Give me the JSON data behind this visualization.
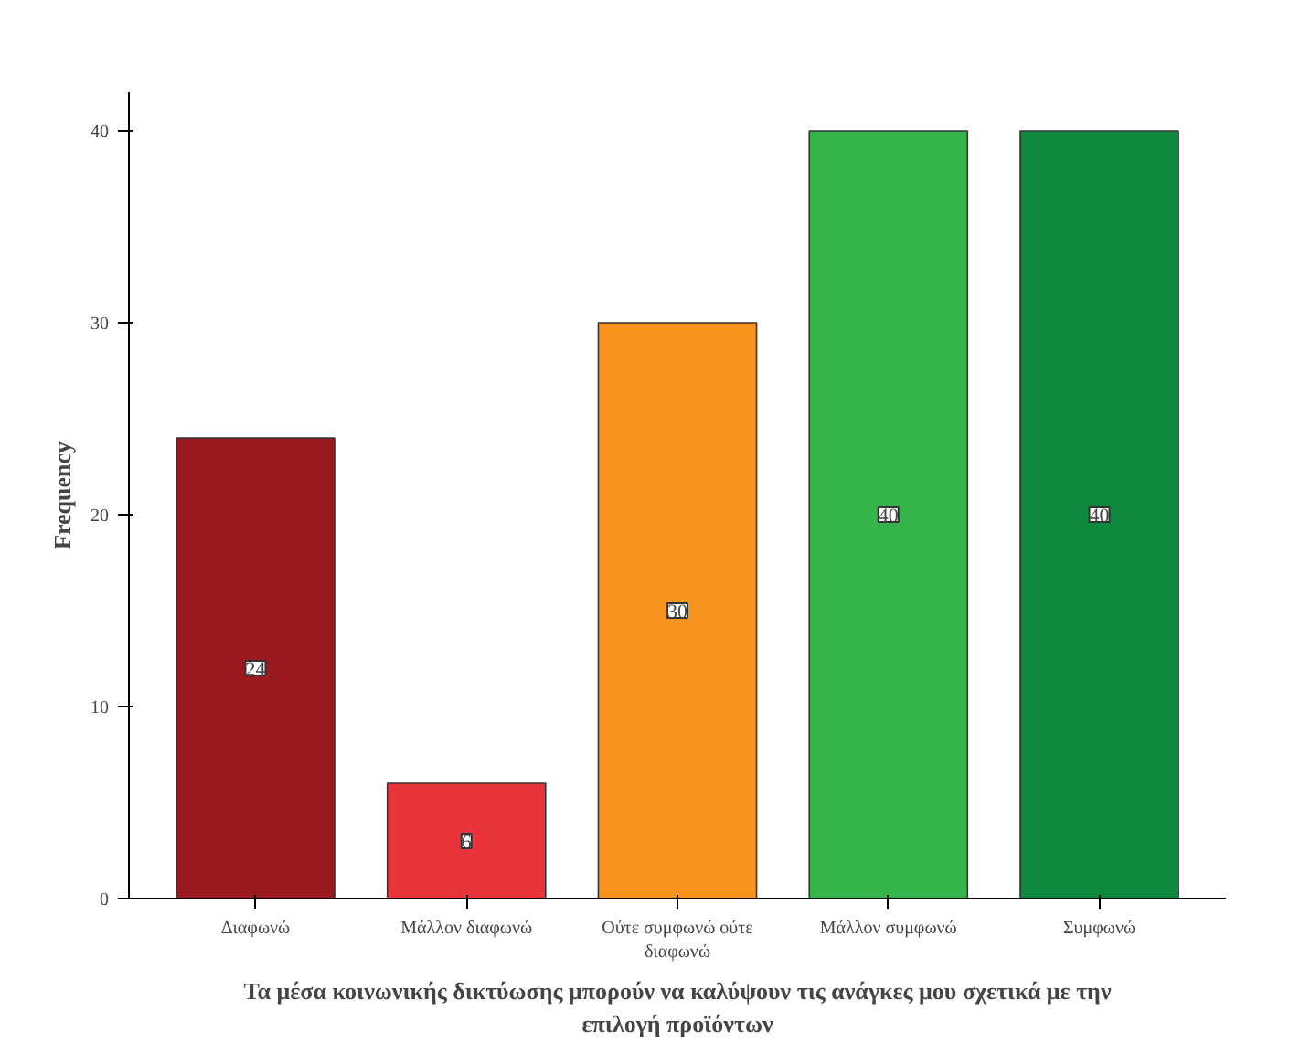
{
  "chart_data": {
    "type": "bar",
    "xlabel": "Τα μέσα κοινωνικής δικτύωσης μπορούν να καλύψουν τις ανάγκες μου σχετικά με την επιλογή προϊόντων",
    "ylabel": "Frequency",
    "categories": [
      "Διαφωνώ",
      "Μάλλον διαφωνώ",
      "Ούτε συμφωνώ ούτε διαφωνώ",
      "Μάλλον συμφωνώ",
      "Συμφωνώ"
    ],
    "values": [
      24,
      6,
      30,
      40,
      40
    ],
    "colors": [
      "#9b1a1f",
      "#e8343a",
      "#f7941d",
      "#34b44a",
      "#0e8a3e"
    ],
    "ylim": [
      0,
      42
    ],
    "yticks": [
      0,
      10,
      20,
      30,
      40
    ],
    "grid": false,
    "data_labels": true
  }
}
